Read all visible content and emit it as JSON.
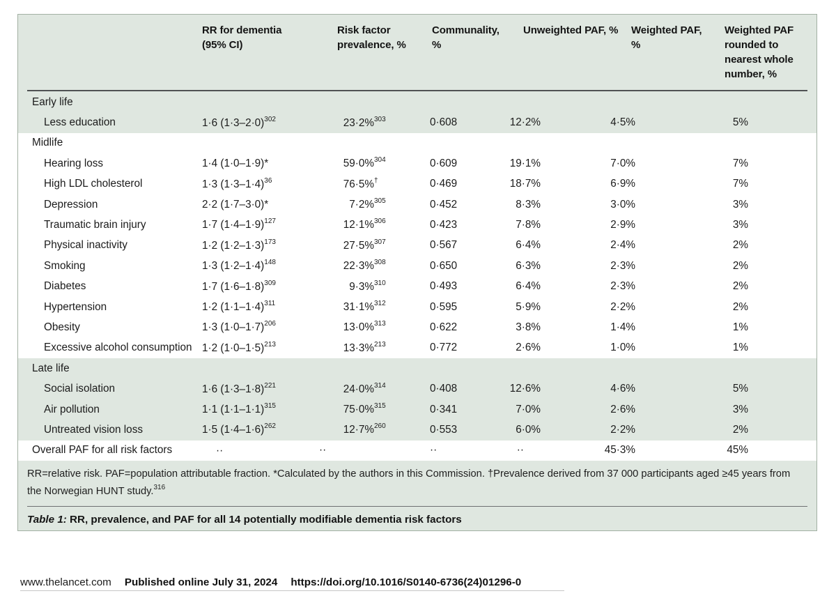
{
  "colors": {
    "table_bg": "#dfe7e0",
    "row_white": "#ffffff",
    "table_border": "#a2b0a3",
    "header_rule": "#505254",
    "text": "#1b1b1b"
  },
  "table": {
    "headers": [
      "RR for dementia (95% CI)",
      "Risk factor prevalence, %",
      "Communality, %",
      "Unweighted PAF, %",
      "Weighted PAF, %",
      "Weighted PAF rounded to nearest whole number, %"
    ],
    "sections": [
      {
        "label": "Early life",
        "tone": "green",
        "rows": [
          {
            "factor": "Less education",
            "rr": "1·6 (1·3–2·0)",
            "rr_sup": "302",
            "prevalence": "23·2%",
            "prev_sup": "303",
            "communality": "0·608",
            "unweighted": "12·2%",
            "weighted": "4·5%",
            "rounded": "5%"
          }
        ]
      },
      {
        "label": "Midlife",
        "tone": "white",
        "rows": [
          {
            "factor": "Hearing loss",
            "rr": "1·4 (1·0–1·9)*",
            "rr_sup": "",
            "prevalence": "59·0%",
            "prev_sup": "304",
            "communality": "0·609",
            "unweighted": "19·1%",
            "weighted": "7·0%",
            "rounded": "7%"
          },
          {
            "factor": "High LDL cholesterol",
            "rr": "1·3 (1·3–1·4)",
            "rr_sup": "36",
            "prevalence": "76·5%",
            "prev_sup": "†",
            "communality": "0·469",
            "unweighted": "18·7%",
            "weighted": "6·9%",
            "rounded": "7%"
          },
          {
            "factor": "Depression",
            "rr": "2·2 (1·7–3·0)*",
            "rr_sup": "",
            "prevalence": "7·2%",
            "prev_sup": "305",
            "communality": "0·452",
            "unweighted": "8·3%",
            "weighted": "3·0%",
            "rounded": "3%"
          },
          {
            "factor": "Traumatic brain injury",
            "rr": "1·7 (1·4–1·9)",
            "rr_sup": "127",
            "prevalence": "12·1%",
            "prev_sup": "306",
            "communality": "0·423",
            "unweighted": "7·8%",
            "weighted": "2·9%",
            "rounded": "3%"
          },
          {
            "factor": "Physical inactivity",
            "rr": "1·2 (1·2–1·3)",
            "rr_sup": "173",
            "prevalence": "27·5%",
            "prev_sup": "307",
            "communality": "0·567",
            "unweighted": "6·4%",
            "weighted": "2·4%",
            "rounded": "2%"
          },
          {
            "factor": "Smoking",
            "rr": "1·3 (1·2–1·4)",
            "rr_sup": "148",
            "prevalence": "22·3%",
            "prev_sup": "308",
            "communality": "0·650",
            "unweighted": "6·3%",
            "weighted": "2·3%",
            "rounded": "2%"
          },
          {
            "factor": "Diabetes",
            "rr": "1·7 (1·6–1·8)",
            "rr_sup": "309",
            "prevalence": "9·3%",
            "prev_sup": "310",
            "communality": "0·493",
            "unweighted": "6·4%",
            "weighted": "2·3%",
            "rounded": "2%"
          },
          {
            "factor": "Hypertension",
            "rr": "1·2 (1·1–1·4)",
            "rr_sup": "311",
            "prevalence": "31·1%",
            "prev_sup": "312",
            "communality": "0·595",
            "unweighted": "5·9%",
            "weighted": "2·2%",
            "rounded": "2%"
          },
          {
            "factor": "Obesity",
            "rr": "1·3 (1·0–1·7)",
            "rr_sup": "206",
            "prevalence": "13·0%",
            "prev_sup": "313",
            "communality": "0·622",
            "unweighted": "3·8%",
            "weighted": "1·4%",
            "rounded": "1%"
          },
          {
            "factor": "Excessive alcohol consumption",
            "rr": "1·2 (1·0–1·5)",
            "rr_sup": "213",
            "prevalence": "13·3%",
            "prev_sup": "213",
            "communality": "0·772",
            "unweighted": "2·6%",
            "weighted": "1·0%",
            "rounded": "1%"
          }
        ]
      },
      {
        "label": "Late life",
        "tone": "green",
        "rows": [
          {
            "factor": "Social isolation",
            "rr": "1·6 (1·3–1·8)",
            "rr_sup": "221",
            "prevalence": "24·0%",
            "prev_sup": "314",
            "communality": "0·408",
            "unweighted": "12·6%",
            "weighted": "4·6%",
            "rounded": "5%"
          },
          {
            "factor": "Air pollution",
            "rr": "1·1 (1·1–1·1)",
            "rr_sup": "315",
            "prevalence": "75·0%",
            "prev_sup": "315",
            "communality": "0·341",
            "unweighted": "7·0%",
            "weighted": "2·6%",
            "rounded": "3%"
          },
          {
            "factor": "Untreated vision loss",
            "rr": "1·5 (1·4–1·6)",
            "rr_sup": "262",
            "prevalence": "12·7%",
            "prev_sup": "260",
            "communality": "0·553",
            "unweighted": "6·0%",
            "weighted": "2·2%",
            "rounded": "2%"
          }
        ]
      }
    ],
    "overall": {
      "factor": "Overall PAF for all risk factors",
      "rr": "··",
      "rr_sup": "",
      "prevalence": "··",
      "prev_sup": "",
      "communality": "··",
      "unweighted": "··",
      "weighted": "45·3%",
      "rounded": "45%"
    },
    "footnote": {
      "line1": "RR=relative risk. PAF=population attributable fraction. *Calculated by the authors in this Commission. †Prevalence derived from 37 000 participants aged ≥45 years from",
      "line2": "the Norwegian HUNT study.",
      "line2_sup": "316"
    },
    "caption": {
      "label": "Table 1:",
      "text": " RR, prevalence, and PAF for all 14 potentially modifiable dementia risk factors"
    }
  },
  "footer": {
    "site": "www.thelancet.com",
    "published": "Published online July 31, 2024",
    "doi": "https://doi.org/10.1016/S0140-6736(24)01296-0"
  }
}
